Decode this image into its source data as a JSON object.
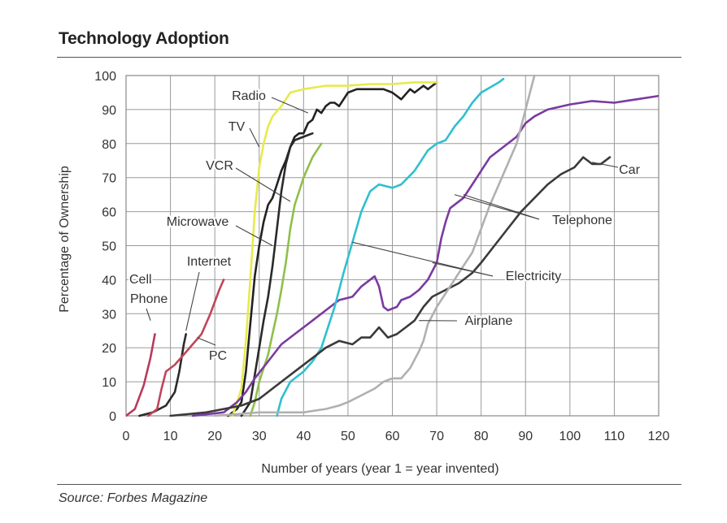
{
  "header": {
    "title": "Technology Adoption"
  },
  "footer": {
    "source": "Source: Forbes Magazine"
  },
  "chart_data": {
    "type": "line",
    "xlabel": "Number of years (year 1 = year invented)",
    "ylabel": "Percentage of Ownership",
    "xlim": [
      0,
      120
    ],
    "ylim": [
      0,
      100
    ],
    "xticks": [
      0,
      10,
      20,
      30,
      40,
      50,
      60,
      70,
      80,
      90,
      100,
      110,
      120
    ],
    "yticks": [
      0,
      10,
      20,
      30,
      40,
      50,
      60,
      70,
      80,
      90,
      100
    ],
    "grid": true,
    "legend": "none (direct line labels)",
    "series": [
      {
        "name": "Cell Phone",
        "color": "#b83a5e",
        "points": [
          [
            0,
            0
          ],
          [
            2,
            2
          ],
          [
            4,
            9
          ],
          [
            5.5,
            17
          ],
          [
            6.5,
            24
          ]
        ]
      },
      {
        "name": "Internet",
        "color": "#2b2b2b",
        "points": [
          [
            3,
            0
          ],
          [
            6,
            1
          ],
          [
            9,
            3
          ],
          [
            11,
            7
          ],
          [
            12,
            13
          ],
          [
            13,
            21
          ],
          [
            13.5,
            24
          ]
        ]
      },
      {
        "name": "PC",
        "color": "#c0465a",
        "points": [
          [
            5,
            0
          ],
          [
            7,
            2
          ],
          [
            8,
            8
          ],
          [
            9,
            13
          ],
          [
            11,
            15
          ],
          [
            13,
            18
          ],
          [
            15,
            21
          ],
          [
            17,
            24
          ],
          [
            19,
            30
          ],
          [
            21,
            37
          ],
          [
            22,
            40
          ]
        ]
      },
      {
        "name": "Microwave",
        "color": "#222222",
        "points": [
          [
            23,
            0
          ],
          [
            25,
            2
          ],
          [
            26,
            4
          ],
          [
            27,
            13
          ],
          [
            28,
            27
          ],
          [
            29,
            41
          ],
          [
            30,
            50
          ],
          [
            31,
            57
          ],
          [
            32,
            62
          ],
          [
            33,
            64
          ],
          [
            34,
            68
          ],
          [
            35,
            72
          ],
          [
            36,
            75
          ],
          [
            37,
            79
          ],
          [
            38,
            82
          ],
          [
            39,
            83
          ],
          [
            40,
            83
          ],
          [
            41,
            86
          ],
          [
            42,
            87
          ],
          [
            43,
            90
          ],
          [
            44,
            89
          ],
          [
            45,
            91
          ],
          [
            46,
            92
          ],
          [
            47,
            92
          ],
          [
            48,
            91
          ],
          [
            49,
            93
          ],
          [
            50,
            95
          ],
          [
            52,
            96
          ],
          [
            55,
            96
          ],
          [
            58,
            96
          ],
          [
            60,
            95
          ],
          [
            62,
            93
          ],
          [
            64,
            96
          ],
          [
            65,
            95
          ],
          [
            67,
            97
          ],
          [
            68,
            96
          ],
          [
            70,
            98
          ]
        ]
      },
      {
        "name": "TV",
        "color": "#e7ea4a",
        "points": [
          [
            24,
            0
          ],
          [
            26,
            8
          ],
          [
            27,
            22
          ],
          [
            28,
            40
          ],
          [
            29,
            60
          ],
          [
            30,
            73
          ],
          [
            31,
            80
          ],
          [
            32,
            85
          ],
          [
            33,
            88
          ],
          [
            35,
            91
          ],
          [
            37,
            95
          ],
          [
            40,
            96
          ],
          [
            45,
            97
          ],
          [
            50,
            97
          ],
          [
            55,
            97.5
          ],
          [
            60,
            97.5
          ],
          [
            65,
            98
          ],
          [
            70,
            98
          ]
        ]
      },
      {
        "name": "Radio",
        "color": "#2a2a2a",
        "points": [
          [
            26,
            0
          ],
          [
            28,
            4
          ],
          [
            29,
            12
          ],
          [
            30,
            20
          ],
          [
            31,
            28
          ],
          [
            32,
            35
          ],
          [
            33,
            44
          ],
          [
            34,
            55
          ],
          [
            35,
            66
          ],
          [
            36,
            74
          ],
          [
            37,
            79
          ],
          [
            38,
            81
          ],
          [
            40,
            82
          ],
          [
            42,
            83
          ]
        ]
      },
      {
        "name": "VCR",
        "color": "#8fbf4a",
        "points": [
          [
            28,
            0
          ],
          [
            29,
            4
          ],
          [
            30,
            10
          ],
          [
            31,
            14
          ],
          [
            32,
            18
          ],
          [
            33,
            24
          ],
          [
            34,
            30
          ],
          [
            35,
            37
          ],
          [
            36,
            45
          ],
          [
            37,
            55
          ],
          [
            38,
            62
          ],
          [
            39,
            66
          ],
          [
            40,
            70
          ],
          [
            41,
            73
          ],
          [
            42,
            76
          ],
          [
            43,
            78
          ],
          [
            44,
            80
          ]
        ]
      },
      {
        "name": "Telephone",
        "color": "#7a3aa0",
        "points": [
          [
            15,
            0
          ],
          [
            22,
            1
          ],
          [
            25,
            4
          ],
          [
            27,
            7
          ],
          [
            29,
            11
          ],
          [
            32,
            16
          ],
          [
            35,
            21
          ],
          [
            38,
            24
          ],
          [
            42,
            28
          ],
          [
            45,
            31
          ],
          [
            48,
            34
          ],
          [
            51,
            35
          ],
          [
            53,
            38
          ],
          [
            56,
            41
          ],
          [
            57,
            38
          ],
          [
            58,
            32
          ],
          [
            59,
            31
          ],
          [
            61,
            32
          ],
          [
            62,
            34
          ],
          [
            64,
            35
          ],
          [
            66,
            37
          ],
          [
            68,
            40
          ],
          [
            70,
            45
          ],
          [
            71,
            52
          ],
          [
            72,
            57
          ],
          [
            73,
            61
          ],
          [
            74,
            62
          ],
          [
            76,
            64
          ],
          [
            78,
            68
          ],
          [
            80,
            72
          ],
          [
            82,
            76
          ],
          [
            85,
            79
          ],
          [
            88,
            82
          ],
          [
            90,
            86
          ],
          [
            92,
            88
          ],
          [
            95,
            90
          ],
          [
            100,
            91.5
          ],
          [
            105,
            92.5
          ],
          [
            110,
            92
          ],
          [
            115,
            93
          ],
          [
            120,
            94
          ]
        ]
      },
      {
        "name": "Electricity",
        "color": "#2fbfd0",
        "points": [
          [
            34,
            0
          ],
          [
            35,
            5
          ],
          [
            37,
            10
          ],
          [
            40,
            13
          ],
          [
            42,
            16
          ],
          [
            44,
            20
          ],
          [
            45,
            24
          ],
          [
            47,
            32
          ],
          [
            49,
            42
          ],
          [
            51,
            51
          ],
          [
            53,
            60
          ],
          [
            55,
            66
          ],
          [
            57,
            68
          ],
          [
            60,
            67
          ],
          [
            62,
            68
          ],
          [
            65,
            72
          ],
          [
            68,
            78
          ],
          [
            70,
            80
          ],
          [
            72,
            81
          ],
          [
            74,
            85
          ],
          [
            76,
            88
          ],
          [
            78,
            92
          ],
          [
            80,
            95
          ],
          [
            84,
            98
          ],
          [
            85,
            99
          ]
        ]
      },
      {
        "name": "Car",
        "color": "#3a3a3a",
        "points": [
          [
            10,
            0
          ],
          [
            18,
            1
          ],
          [
            22,
            2
          ],
          [
            26,
            3
          ],
          [
            30,
            5
          ],
          [
            33,
            8
          ],
          [
            36,
            11
          ],
          [
            39,
            14
          ],
          [
            42,
            17
          ],
          [
            45,
            20
          ],
          [
            48,
            22
          ],
          [
            51,
            21
          ],
          [
            53,
            23
          ],
          [
            55,
            23
          ],
          [
            57,
            26
          ],
          [
            59,
            23
          ],
          [
            61,
            24
          ],
          [
            63,
            26
          ],
          [
            65,
            28
          ],
          [
            67,
            32
          ],
          [
            69,
            35
          ],
          [
            72,
            37
          ],
          [
            75,
            39
          ],
          [
            78,
            42
          ],
          [
            80,
            45
          ],
          [
            83,
            50
          ],
          [
            86,
            55
          ],
          [
            89,
            60
          ],
          [
            92,
            64
          ],
          [
            95,
            68
          ],
          [
            98,
            71
          ],
          [
            101,
            73
          ],
          [
            103,
            76
          ],
          [
            105,
            74
          ],
          [
            107,
            74
          ],
          [
            109,
            76
          ]
        ]
      },
      {
        "name": "Airplane",
        "color": "#b0b0b0",
        "points": [
          [
            20,
            0
          ],
          [
            30,
            1
          ],
          [
            40,
            1
          ],
          [
            45,
            2
          ],
          [
            48,
            3
          ],
          [
            50,
            4
          ],
          [
            53,
            6
          ],
          [
            56,
            8
          ],
          [
            58,
            10
          ],
          [
            60,
            11
          ],
          [
            62,
            11
          ],
          [
            64,
            14
          ],
          [
            66,
            19
          ],
          [
            67,
            22
          ],
          [
            68,
            27
          ],
          [
            70,
            32
          ],
          [
            72,
            36
          ],
          [
            74,
            40
          ],
          [
            76,
            44
          ],
          [
            78,
            48
          ],
          [
            80,
            55
          ],
          [
            82,
            62
          ],
          [
            84,
            68
          ],
          [
            86,
            74
          ],
          [
            88,
            80
          ],
          [
            89,
            85
          ],
          [
            90,
            90
          ],
          [
            91,
            95
          ],
          [
            92,
            100
          ]
        ]
      }
    ],
    "annotations": [
      {
        "label": "Radio",
        "series": "Radio"
      },
      {
        "label": "TV",
        "series": "TV"
      },
      {
        "label": "VCR",
        "series": "VCR"
      },
      {
        "label": "Microwave",
        "series": "Microwave"
      },
      {
        "label": "Internet",
        "series": "Internet"
      },
      {
        "label": "Cell",
        "series": "Cell Phone"
      },
      {
        "label": "Phone",
        "series": "Cell Phone"
      },
      {
        "label": "PC",
        "series": "PC"
      },
      {
        "label": "Car",
        "series": "Car"
      },
      {
        "label": "Telephone",
        "series": "Telephone"
      },
      {
        "label": "Electricity",
        "series": "Electricity"
      },
      {
        "label": "Airplane",
        "series": "Airplane"
      }
    ]
  }
}
